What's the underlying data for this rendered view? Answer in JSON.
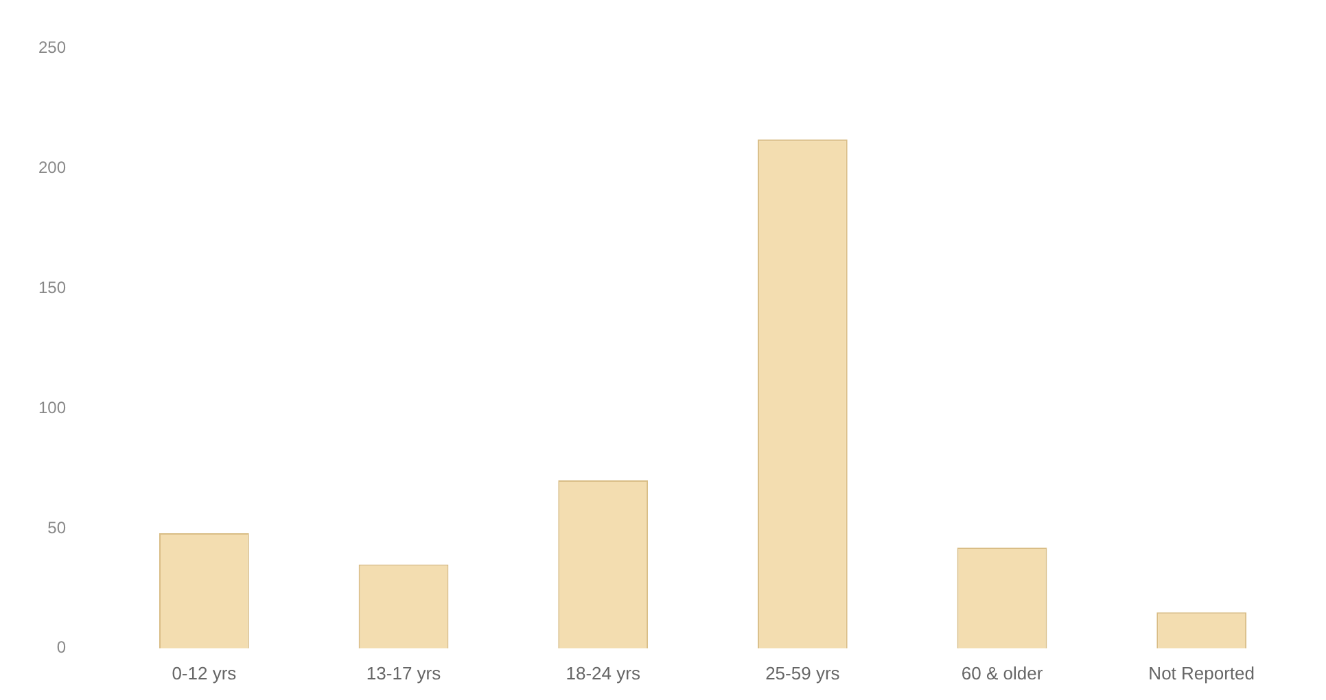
{
  "chart_data": {
    "type": "bar",
    "categories": [
      "0-12 yrs",
      "13-17 yrs",
      "18-24 yrs",
      "25-59 yrs",
      "60 & older",
      "Not Reported"
    ],
    "values": [
      48,
      35,
      70,
      212,
      42,
      15
    ],
    "color": "#f3ddb0",
    "ylim": [
      0,
      250
    ],
    "yticks": [
      0,
      50,
      100,
      150,
      200,
      250
    ],
    "grid": false,
    "legend": false
  }
}
